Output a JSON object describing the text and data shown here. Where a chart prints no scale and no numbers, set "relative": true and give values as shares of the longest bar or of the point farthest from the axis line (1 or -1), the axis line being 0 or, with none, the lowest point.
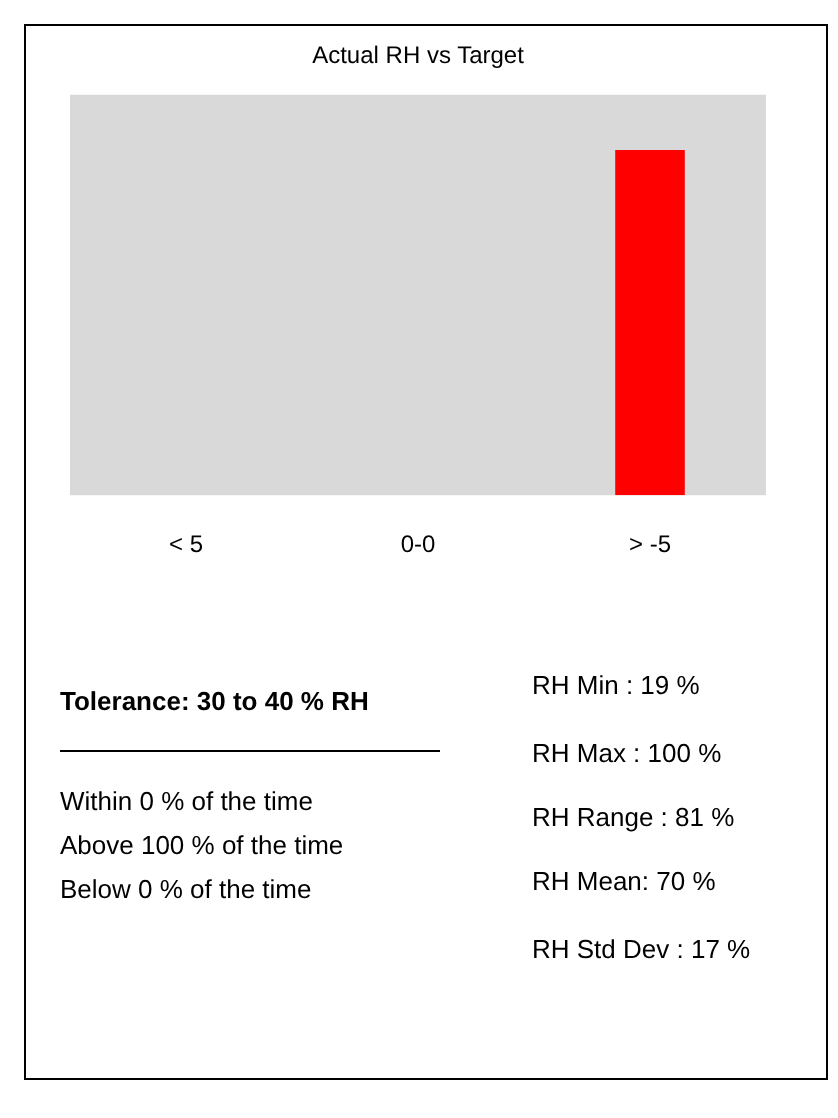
{
  "chart_data": {
    "type": "bar",
    "title": "Actual RH vs Target",
    "categories": [
      "< 5",
      "0-0",
      "> -5"
    ],
    "values": [
      0,
      0,
      1
    ],
    "color": "#ff0000",
    "relative": true,
    "grid": false,
    "legend": false,
    "tick_labels": "x",
    "annotations": [
      "Tolerance: 30 to 40 % RH",
      "Within  0 % of the time",
      "Above  100 % of the time",
      "Below  0 % of the time",
      "RH Min : 19 %",
      "RH Max : 100 %",
      "RH Range : 81 %",
      "RH Mean: 70 %",
      "RH Std Dev : 17 %"
    ]
  }
}
